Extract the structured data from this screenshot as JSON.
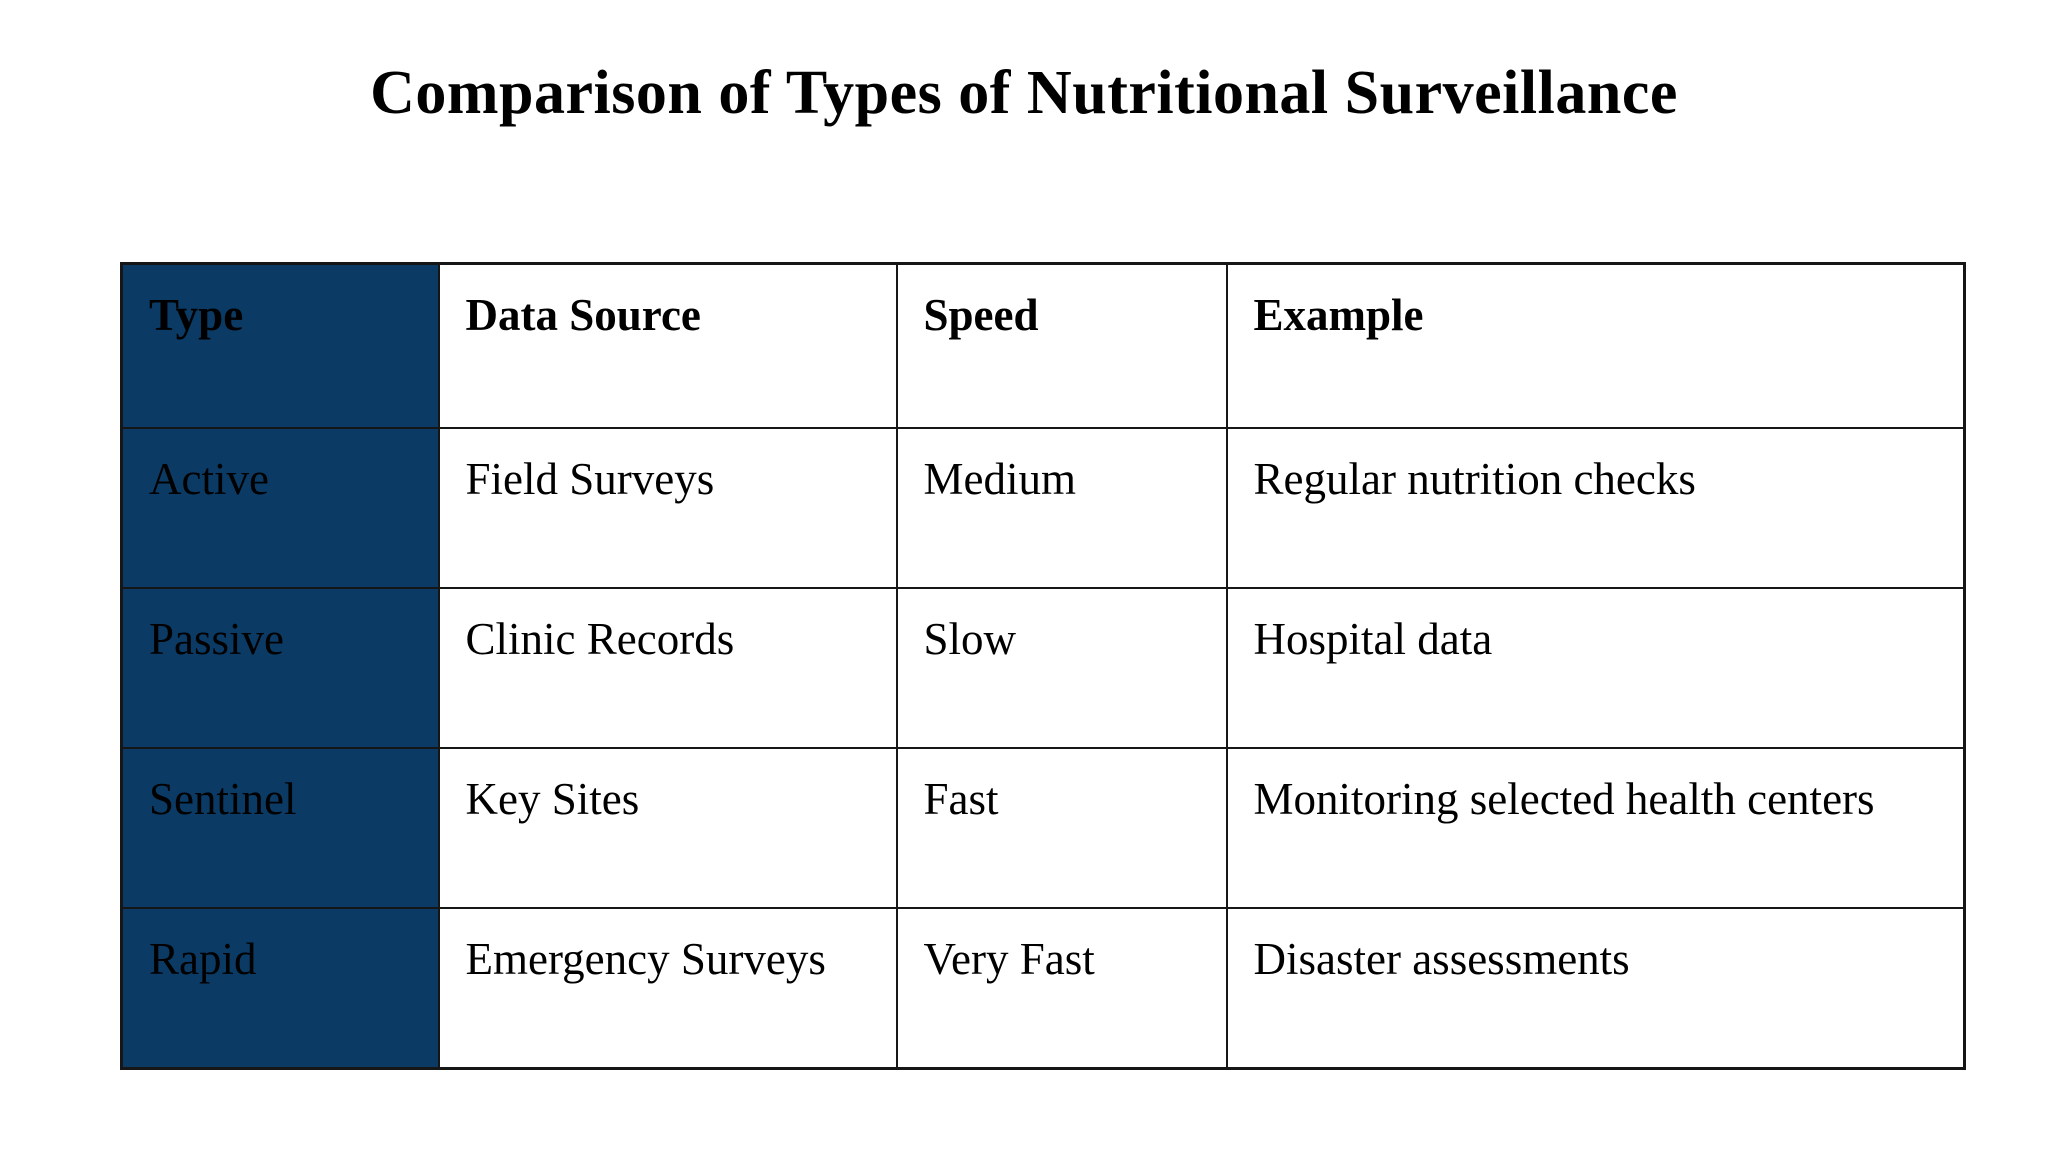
{
  "title": "Comparison of Types of Nutritional Surveillance",
  "colors": {
    "background": "#ffffff",
    "row_header_bg": "#0b3a64",
    "row_header_text": "#ffffff",
    "body_text": "#000000",
    "grid_line": "#161616"
  },
  "table": {
    "columns": [
      "Type",
      "Data Source",
      "Speed",
      "Example"
    ],
    "rows": [
      {
        "type": "Active",
        "data_source": "Field Surveys",
        "speed": "Medium",
        "example": "Regular nutrition checks"
      },
      {
        "type": "Passive",
        "data_source": "Clinic Records",
        "speed": "Slow",
        "example": "Hospital data"
      },
      {
        "type": "Sentinel",
        "data_source": "Key Sites",
        "speed": "Fast",
        "example": "Monitoring selected health centers"
      },
      {
        "type": "Rapid",
        "data_source": "Emergency Surveys",
        "speed": "Very Fast",
        "example": "Disaster assessments"
      }
    ]
  }
}
